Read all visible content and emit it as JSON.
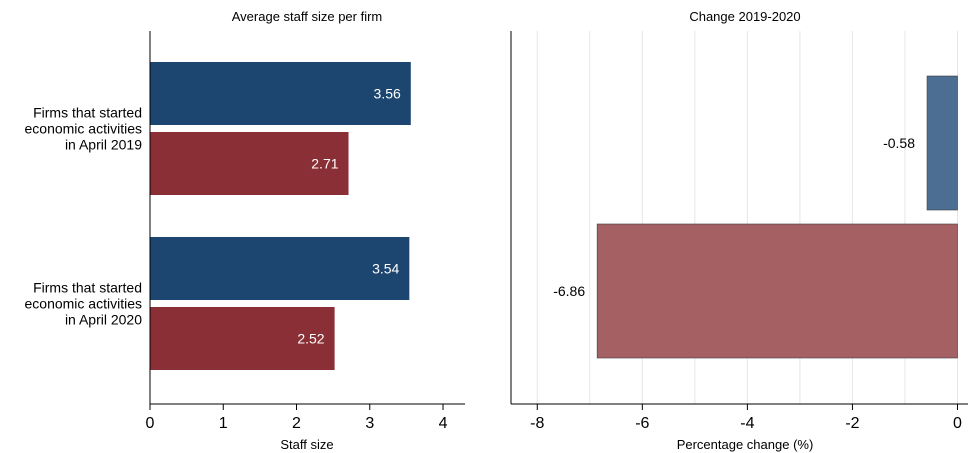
{
  "chart_data": [
    {
      "type": "bar",
      "orientation": "horizontal",
      "title": "Average staff size per firm",
      "xlabel": "Staff size",
      "ylabel": "",
      "xlim": [
        0,
        4.3
      ],
      "xticks": [
        0,
        1,
        2,
        3,
        4
      ],
      "grid": false,
      "categories": [
        [
          "Firms that started",
          "economic activities",
          "in April 2019"
        ],
        [
          "Firms that started",
          "economic activities",
          "in April 2020"
        ]
      ],
      "series": [
        {
          "values": [
            3.56,
            3.54
          ],
          "color": "#1c4670"
        },
        {
          "values": [
            2.71,
            2.52
          ],
          "color": "#8b2f36"
        }
      ],
      "data_labels": [
        "3.56",
        "3.54",
        "2.71",
        "2.52"
      ]
    },
    {
      "type": "bar",
      "orientation": "horizontal",
      "title": "Change 2019-2020",
      "xlabel": "Percentage change (%)",
      "ylabel": "",
      "xlim": [
        -8.5,
        0.2
      ],
      "xticks": [
        -8,
        -6,
        -4,
        -2,
        0
      ],
      "grid": true,
      "bars": [
        {
          "value": -0.58,
          "label": "-0.58",
          "color": "#4b6e92"
        },
        {
          "value": -6.86,
          "label": "-6.86",
          "color": "#a56064"
        }
      ]
    }
  ]
}
